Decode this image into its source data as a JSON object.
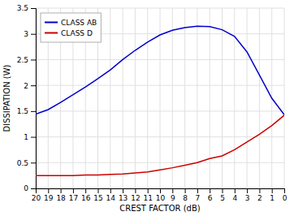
{
  "chart_data": {
    "type": "line",
    "xlabel": "CREST FACTOR (dB)",
    "ylabel": "DISSIPATION (W)",
    "x": [
      20,
      19,
      18,
      17,
      16,
      15,
      14,
      13,
      12,
      11,
      10,
      9,
      8,
      7,
      6,
      5,
      4,
      3,
      2,
      1,
      0
    ],
    "series": [
      {
        "name": "CLASS AB",
        "color": "#0000cc",
        "values": [
          1.44,
          1.53,
          1.67,
          1.82,
          1.97,
          2.13,
          2.3,
          2.5,
          2.68,
          2.84,
          2.98,
          3.07,
          3.12,
          3.15,
          3.14,
          3.08,
          2.95,
          2.65,
          2.2,
          1.75,
          1.43
        ]
      },
      {
        "name": "CLASS D",
        "color": "#cc0000",
        "values": [
          0.25,
          0.25,
          0.25,
          0.25,
          0.26,
          0.26,
          0.27,
          0.28,
          0.3,
          0.32,
          0.36,
          0.4,
          0.45,
          0.5,
          0.58,
          0.63,
          0.75,
          0.9,
          1.05,
          1.22,
          1.42
        ]
      }
    ],
    "xlim": [
      20,
      0
    ],
    "ylim": [
      0,
      3.5
    ],
    "xticks": [
      20,
      19,
      18,
      17,
      16,
      15,
      14,
      13,
      12,
      11,
      10,
      9,
      8,
      7,
      6,
      5,
      4,
      3,
      2,
      1,
      0
    ],
    "yticks": [
      0,
      0.5,
      1,
      1.5,
      2,
      2.5,
      3,
      3.5
    ],
    "grid": true,
    "legend": "upper left"
  }
}
